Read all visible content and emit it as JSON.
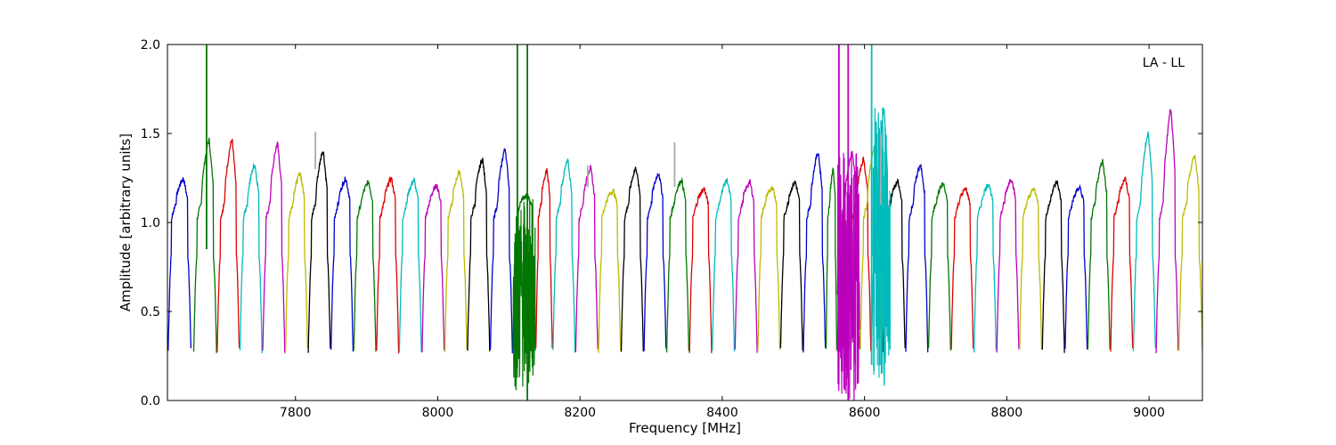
{
  "chart_data": {
    "type": "line",
    "annotation": "LA - LL",
    "xlabel": "Frequency [MHz]",
    "ylabel": "Amplitude [arbitrary units]",
    "xlim": [
      7620,
      9075
    ],
    "ylim": [
      0.0,
      2.0
    ],
    "x_ticks": [
      7800,
      8000,
      8200,
      8400,
      8600,
      8800,
      9000
    ],
    "y_ticks": [
      0.0,
      0.5,
      1.0,
      1.5,
      2.0
    ],
    "x_tick_labels": [
      "7800",
      "8000",
      "8200",
      "8400",
      "8600",
      "8800",
      "9000"
    ],
    "y_tick_labels": [
      "0.0",
      "0.5",
      "1.0",
      "1.5",
      "2.0"
    ],
    "grid": false,
    "bandpass_channels": [
      {
        "start": 7621,
        "end": 7653,
        "peak": 1.25,
        "color": "#0000cc"
      },
      {
        "start": 7657,
        "end": 7689,
        "peak": 1.47,
        "color": "#007700"
      },
      {
        "start": 7690,
        "end": 7721,
        "peak": 1.47,
        "color": "#dd0000"
      },
      {
        "start": 7722,
        "end": 7753,
        "peak": 1.33,
        "color": "#00bbbb"
      },
      {
        "start": 7754,
        "end": 7785,
        "peak": 1.45,
        "color": "#bb00bb"
      },
      {
        "start": 7786,
        "end": 7817,
        "peak": 1.28,
        "color": "#bbbb00"
      },
      {
        "start": 7818,
        "end": 7849,
        "peak": 1.41,
        "color": "#000000"
      },
      {
        "start": 7850,
        "end": 7881,
        "peak": 1.25,
        "color": "#0000cc"
      },
      {
        "start": 7882,
        "end": 7913,
        "peak": 1.23,
        "color": "#007700"
      },
      {
        "start": 7914,
        "end": 7945,
        "peak": 1.25,
        "color": "#dd0000"
      },
      {
        "start": 7946,
        "end": 7977,
        "peak": 1.24,
        "color": "#00bbbb"
      },
      {
        "start": 7978,
        "end": 8009,
        "peak": 1.21,
        "color": "#bb00bb"
      },
      {
        "start": 8010,
        "end": 8041,
        "peak": 1.29,
        "color": "#bbbb00"
      },
      {
        "start": 8042,
        "end": 8073,
        "peak": 1.36,
        "color": "#000000"
      },
      {
        "start": 8074,
        "end": 8105,
        "peak": 1.42,
        "color": "#0000cc"
      },
      {
        "start": 8106,
        "end": 8137,
        "peak": 1.15,
        "color": "#007700"
      },
      {
        "start": 8138,
        "end": 8161,
        "peak": 1.3,
        "color": "#dd0000"
      },
      {
        "start": 8162,
        "end": 8193,
        "peak": 1.35,
        "color": "#00bbbb"
      },
      {
        "start": 8194,
        "end": 8225,
        "peak": 1.31,
        "color": "#bb00bb"
      },
      {
        "start": 8226,
        "end": 8257,
        "peak": 1.18,
        "color": "#bbbb00"
      },
      {
        "start": 8258,
        "end": 8289,
        "peak": 1.31,
        "color": "#000000"
      },
      {
        "start": 8290,
        "end": 8321,
        "peak": 1.28,
        "color": "#0000cc"
      },
      {
        "start": 8322,
        "end": 8353,
        "peak": 1.24,
        "color": "#007700"
      },
      {
        "start": 8354,
        "end": 8385,
        "peak": 1.19,
        "color": "#dd0000"
      },
      {
        "start": 8386,
        "end": 8417,
        "peak": 1.24,
        "color": "#00bbbb"
      },
      {
        "start": 8418,
        "end": 8449,
        "peak": 1.23,
        "color": "#bb00bb"
      },
      {
        "start": 8450,
        "end": 8481,
        "peak": 1.2,
        "color": "#bbbb00"
      },
      {
        "start": 8482,
        "end": 8513,
        "peak": 1.23,
        "color": "#000000"
      },
      {
        "start": 8514,
        "end": 8545,
        "peak": 1.4,
        "color": "#0000cc"
      },
      {
        "start": 8546,
        "end": 8561,
        "peak": 1.3,
        "color": "#007700"
      },
      {
        "start": 8562,
        "end": 8593,
        "peak": 1.4,
        "color": "#bb00bb"
      },
      {
        "start": 8578,
        "end": 8609,
        "peak": 1.36,
        "color": "#dd0000"
      },
      {
        "start": 8594,
        "end": 8624,
        "peak": 1.43,
        "color": "#bbbb00"
      },
      {
        "start": 8610,
        "end": 8636,
        "peak": 1.65,
        "color": "#00bbbb"
      },
      {
        "start": 8626,
        "end": 8657,
        "peak": 1.23,
        "color": "#000000"
      },
      {
        "start": 8658,
        "end": 8689,
        "peak": 1.33,
        "color": "#0000cc"
      },
      {
        "start": 8690,
        "end": 8721,
        "peak": 1.22,
        "color": "#007700"
      },
      {
        "start": 8722,
        "end": 8753,
        "peak": 1.19,
        "color": "#dd0000"
      },
      {
        "start": 8754,
        "end": 8785,
        "peak": 1.22,
        "color": "#00bbbb"
      },
      {
        "start": 8786,
        "end": 8817,
        "peak": 1.25,
        "color": "#bb00bb"
      },
      {
        "start": 8818,
        "end": 8849,
        "peak": 1.19,
        "color": "#bbbb00"
      },
      {
        "start": 8850,
        "end": 8881,
        "peak": 1.23,
        "color": "#000000"
      },
      {
        "start": 8882,
        "end": 8913,
        "peak": 1.2,
        "color": "#0000cc"
      },
      {
        "start": 8914,
        "end": 8945,
        "peak": 1.35,
        "color": "#007700"
      },
      {
        "start": 8946,
        "end": 8977,
        "peak": 1.25,
        "color": "#dd0000"
      },
      {
        "start": 8978,
        "end": 9009,
        "peak": 1.51,
        "color": "#00bbbb"
      },
      {
        "start": 9010,
        "end": 9041,
        "peak": 1.65,
        "color": "#bb00bb"
      },
      {
        "start": 9042,
        "end": 9075,
        "peak": 1.38,
        "color": "#bbbb00"
      }
    ],
    "rfi_spikes": [
      {
        "x": 7675,
        "y_low": 0.85,
        "y_high": 2.0,
        "color": "#007700"
      },
      {
        "x": 7828,
        "y_low": 1.3,
        "y_high": 1.51,
        "color": "#aaaaaa"
      },
      {
        "x": 8112,
        "y_low": 0.25,
        "y_high": 2.0,
        "color": "#007700"
      },
      {
        "x": 8126,
        "y_low": 0.0,
        "y_high": 2.0,
        "color": "#007700"
      },
      {
        "x": 8211,
        "y_low": 1.2,
        "y_high": 1.32,
        "color": "#aaaaaa"
      },
      {
        "x": 8333,
        "y_low": 1.2,
        "y_high": 1.45,
        "color": "#aaaaaa"
      },
      {
        "x": 8564,
        "y_low": 0.6,
        "y_high": 2.0,
        "color": "#bb00bb"
      },
      {
        "x": 8577,
        "y_low": 0.0,
        "y_high": 2.0,
        "color": "#bb00bb"
      },
      {
        "x": 8610,
        "y_low": 0.2,
        "y_high": 2.0,
        "color": "#00bbbb"
      },
      {
        "x": 8623,
        "y_low": 1.1,
        "y_high": 1.49,
        "color": "#aaaaaa"
      }
    ],
    "noise_regions": [
      {
        "x_from": 8106,
        "x_to": 8137,
        "y_min": 0.05,
        "y_max": 1.15,
        "color": "#007700"
      },
      {
        "x_from": 8562,
        "x_to": 8593,
        "y_min": 0.0,
        "y_max": 1.4,
        "color": "#bb00bb"
      },
      {
        "x_from": 8612,
        "x_to": 8636,
        "y_min": 0.07,
        "y_max": 1.65,
        "color": "#00bbbb"
      }
    ]
  }
}
